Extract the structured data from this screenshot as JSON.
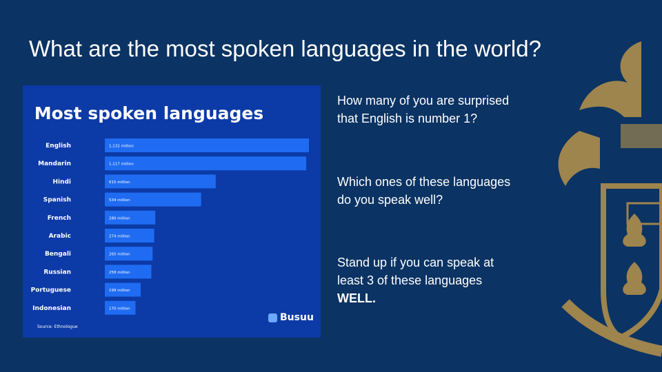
{
  "slide": {
    "title": "What are the most spoken languages in the world?",
    "questions": {
      "q1_line1": "How many of you are surprised",
      "q1_line2": "that English is number 1?",
      "q2_line1": "Which ones of these languages",
      "q2_line2": "do you speak well?",
      "q3_line1": "Stand up if you can speak at",
      "q3_line2": "least 3 of these languages",
      "q3_emphasis": "WELL."
    }
  },
  "chart_data": {
    "type": "bar",
    "orientation": "horizontal",
    "title": "Most spoken languages",
    "categories": [
      "English",
      "Mandarin",
      "Hindi",
      "Spanish",
      "French",
      "Arabic",
      "Bengali",
      "Russian",
      "Portuguese",
      "Indonesian"
    ],
    "values": [
      1132,
      1117,
      615,
      534,
      280,
      274,
      265,
      258,
      199,
      170
    ],
    "value_labels": [
      "1,132 million",
      "1,117 million",
      "615 million",
      "534 million",
      "280 million",
      "274 million",
      "265 million",
      "258 million",
      "199 million",
      "170 million"
    ],
    "unit": "million",
    "xlim": [
      0,
      1132
    ],
    "source": "Source: Ethnologue",
    "brand": "Busuu",
    "colors": {
      "background": "#0c3aa6",
      "bar": "#1f6cf2",
      "text": "#ffffff"
    }
  },
  "colors": {
    "slide_background": "#0b3363",
    "crest_gold": "#b8934a"
  }
}
